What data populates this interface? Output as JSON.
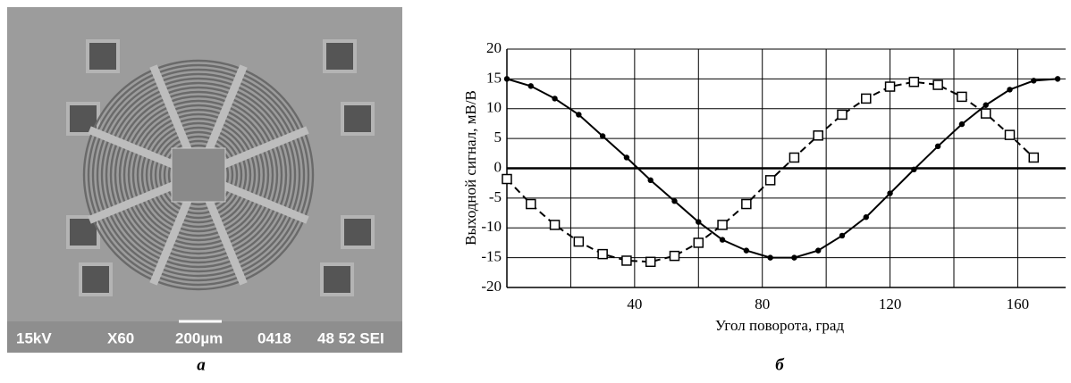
{
  "sem_image": {
    "labels": [
      "15kV",
      "X60",
      "200µm",
      "0418",
      "48 52 SEI"
    ],
    "caption": "а"
  },
  "chart_data": {
    "type": "line",
    "caption": "б",
    "x_label": "Угол поворота, град",
    "y_label": "Выходной сигнал, мВ/В",
    "x": [
      0,
      7.5,
      15,
      22.5,
      30,
      37.5,
      45,
      52.5,
      60,
      67.5,
      75,
      82.5,
      90,
      97.5,
      105,
      112.5,
      120,
      127.5,
      135,
      142.5,
      150,
      157.5,
      165,
      172.5
    ],
    "series": [
      {
        "color": "#000000",
        "marker": "circle",
        "dashed": false,
        "values": [
          15,
          13.8,
          11.7,
          9,
          5.4,
          1.8,
          -2,
          -5.5,
          -9,
          -12,
          -13.8,
          -15,
          -15,
          -13.8,
          -11.3,
          -8.2,
          -4.2,
          -0.2,
          3.7,
          7.4,
          10.6,
          13.2,
          14.7,
          15
        ]
      },
      {
        "color": "#000000",
        "marker": "square",
        "dashed": true,
        "values": [
          -1.8,
          -6,
          -9.5,
          -12.3,
          -14.4,
          -15.5,
          -15.7,
          -14.7,
          -12.5,
          -9.5,
          -6,
          -2,
          1.8,
          5.5,
          9,
          11.7,
          13.7,
          14.5,
          14,
          12,
          9.2,
          5.6,
          1.8,
          null
        ]
      }
    ],
    "xlim": [
      0,
      175
    ],
    "xticks": [
      40,
      80,
      120,
      160
    ],
    "xgrid": [
      20,
      40,
      60,
      80,
      100,
      120,
      140,
      160
    ],
    "ylim": [
      -20,
      20
    ],
    "yticks": [
      -20,
      -15,
      -10,
      -5,
      0,
      5,
      10,
      15,
      20
    ],
    "grid": true
  }
}
